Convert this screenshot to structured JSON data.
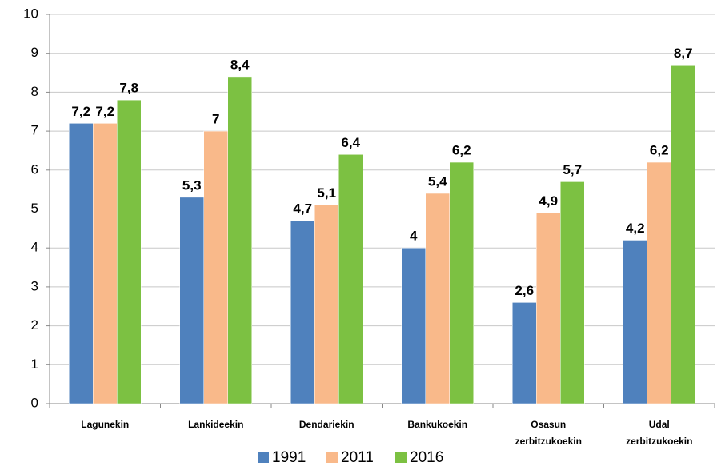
{
  "chart_data": {
    "type": "bar",
    "categories": [
      "Lagunekin",
      "Lankideekin",
      "Dendariekin",
      "Bankukoekin",
      "Osasun zerbitzukoekin",
      "Udal zerbitzukoekin"
    ],
    "series": [
      {
        "name": "1991",
        "color": "#4f81bd",
        "values": [
          7.2,
          5.3,
          4.7,
          4,
          2.6,
          4.2
        ],
        "value_labels": [
          "7,2",
          "5,3",
          "4,7",
          "4",
          "2,6",
          "4,2"
        ]
      },
      {
        "name": "2011",
        "color": "#f9b98a",
        "values": [
          7.2,
          7,
          5.1,
          5.4,
          4.9,
          6.2
        ],
        "value_labels": [
          "7,2",
          "7",
          "5,1",
          "5,4",
          "4,9",
          "6,2"
        ]
      },
      {
        "name": "2016",
        "color": "#7cc142",
        "values": [
          7.8,
          8.4,
          6.4,
          6.2,
          5.7,
          8.7
        ],
        "value_labels": [
          "7,8",
          "8,4",
          "6,4",
          "6,2",
          "5,7",
          "8,7"
        ]
      }
    ],
    "ylim": [
      0,
      10
    ],
    "yticks": [
      0,
      1,
      2,
      3,
      4,
      5,
      6,
      7,
      8,
      9,
      10
    ],
    "grid": true,
    "legend": "bottom"
  }
}
